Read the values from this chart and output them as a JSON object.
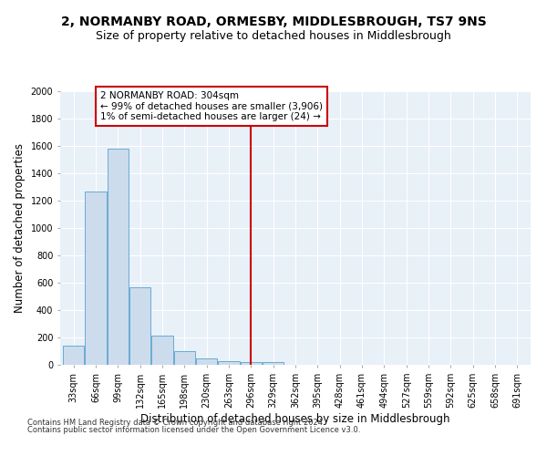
{
  "title": "2, NORMANBY ROAD, ORMESBY, MIDDLESBROUGH, TS7 9NS",
  "subtitle": "Size of property relative to detached houses in Middlesbrough",
  "xlabel": "Distribution of detached houses by size in Middlesbrough",
  "ylabel": "Number of detached properties",
  "footer_line1": "Contains HM Land Registry data © Crown copyright and database right 2024.",
  "footer_line2": "Contains public sector information licensed under the Open Government Licence v3.0.",
  "bin_labels": [
    "33sqm",
    "66sqm",
    "99sqm",
    "132sqm",
    "165sqm",
    "198sqm",
    "230sqm",
    "263sqm",
    "296sqm",
    "329sqm",
    "362sqm",
    "395sqm",
    "428sqm",
    "461sqm",
    "494sqm",
    "527sqm",
    "559sqm",
    "592sqm",
    "625sqm",
    "658sqm",
    "691sqm"
  ],
  "bar_values": [
    140,
    1270,
    1580,
    570,
    215,
    100,
    50,
    25,
    20,
    20,
    0,
    0,
    0,
    0,
    0,
    0,
    0,
    0,
    0,
    0,
    0
  ],
  "bar_color": "#ccdcec",
  "bar_edge_color": "#6aaad4",
  "vline_x": 8,
  "vline_color": "#cc0000",
  "annotation_text": "2 NORMANBY ROAD: 304sqm\n← 99% of detached houses are smaller (3,906)\n1% of semi-detached houses are larger (24) →",
  "annotation_box_color": "#ffffff",
  "annotation_box_edge": "#cc0000",
  "ylim": [
    0,
    2000
  ],
  "yticks": [
    0,
    200,
    400,
    600,
    800,
    1000,
    1200,
    1400,
    1600,
    1800,
    2000
  ],
  "bg_color": "#e8f0f8",
  "grid_color": "#ffffff",
  "title_fontsize": 10,
  "subtitle_fontsize": 9,
  "axis_label_fontsize": 8.5,
  "tick_fontsize": 7,
  "annot_fontsize": 7.5
}
